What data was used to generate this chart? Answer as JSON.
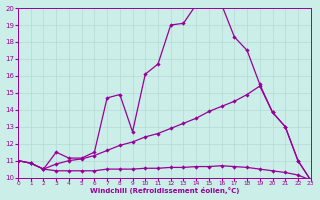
{
  "xlabel": "Windchill (Refroidissement éolien,°C)",
  "xlim": [
    0,
    23
  ],
  "ylim": [
    10,
    20
  ],
  "ytick_vals": [
    10,
    11,
    12,
    13,
    14,
    15,
    16,
    17,
    18,
    19,
    20
  ],
  "xtick_vals": [
    0,
    1,
    2,
    3,
    4,
    5,
    6,
    7,
    8,
    9,
    10,
    11,
    12,
    13,
    14,
    15,
    16,
    17,
    18,
    19,
    20,
    21,
    22,
    23
  ],
  "bg_color": "#cceee8",
  "line_color": "#990099",
  "grid_color": "#b8ddd8",
  "curve1_x": [
    0,
    1,
    2,
    3,
    4,
    5,
    6,
    7,
    8,
    9,
    10,
    11,
    12,
    13,
    14,
    15,
    16,
    17,
    18,
    19,
    20,
    21,
    22,
    23
  ],
  "curve1_y": [
    11.0,
    10.85,
    10.5,
    11.5,
    11.15,
    11.15,
    11.5,
    14.7,
    14.9,
    12.7,
    16.1,
    16.7,
    19.0,
    19.1,
    20.2,
    20.2,
    20.2,
    18.3,
    17.5,
    15.5,
    13.85,
    13.0,
    11.0,
    9.85
  ],
  "curve2_x": [
    0,
    1,
    2,
    3,
    4,
    5,
    6,
    7,
    8,
    9,
    10,
    11,
    12,
    13,
    14,
    15,
    16,
    17,
    18,
    19,
    20,
    21,
    22,
    23
  ],
  "curve2_y": [
    11.0,
    10.85,
    10.5,
    10.8,
    11.0,
    11.1,
    11.3,
    11.6,
    11.9,
    12.1,
    12.4,
    12.6,
    12.9,
    13.2,
    13.5,
    13.9,
    14.2,
    14.5,
    14.9,
    15.4,
    13.85,
    13.0,
    11.0,
    9.85
  ],
  "curve3_x": [
    0,
    1,
    2,
    3,
    4,
    5,
    6,
    7,
    8,
    9,
    10,
    11,
    12,
    13,
    14,
    15,
    16,
    17,
    18,
    19,
    20,
    21,
    22,
    23
  ],
  "curve3_y": [
    11.0,
    10.85,
    10.5,
    10.4,
    10.4,
    10.4,
    10.4,
    10.5,
    10.5,
    10.5,
    10.55,
    10.55,
    10.6,
    10.6,
    10.65,
    10.65,
    10.7,
    10.65,
    10.6,
    10.5,
    10.4,
    10.3,
    10.15,
    9.85
  ]
}
